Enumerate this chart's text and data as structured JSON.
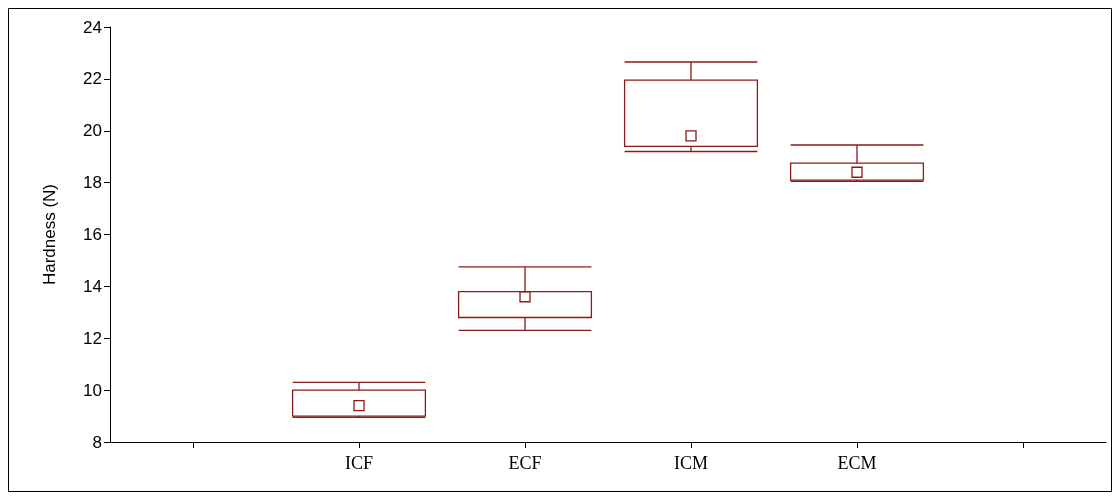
{
  "chart_data": {
    "type": "box",
    "ylabel": "Hardness (N)",
    "categories": [
      null,
      "ICF",
      "ECF",
      "ICM",
      "ECM",
      null
    ],
    "boxes": [
      null,
      {
        "low": 8.95,
        "q1": 9.0,
        "median": 9.4,
        "q3": 10.0,
        "high": 10.3
      },
      {
        "low": 12.3,
        "q1": 12.8,
        "median": 13.6,
        "q3": 13.8,
        "high": 14.75
      },
      {
        "low": 19.2,
        "q1": 19.4,
        "median": 19.8,
        "q3": 21.95,
        "high": 22.65
      },
      {
        "low": 18.05,
        "q1": 18.1,
        "median": 18.4,
        "q3": 18.75,
        "high": 19.45
      },
      null
    ],
    "color": "#8b1a1a",
    "marker": "square",
    "ylim": [
      8,
      24
    ],
    "yticks": [
      8,
      10,
      12,
      14,
      16,
      18,
      20,
      22,
      24
    ],
    "grid": false
  }
}
